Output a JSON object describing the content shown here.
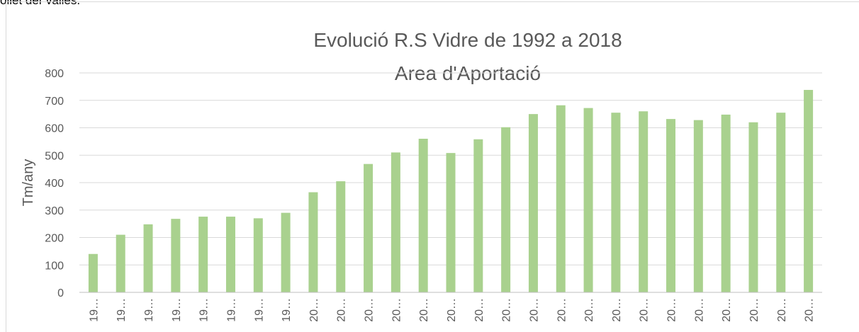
{
  "page_text": "ollet del Vallès.",
  "chart_data": {
    "type": "bar",
    "title": "Evolució R.S Vidre de 1992 a 2018",
    "subtitle": "Area d'Aportació",
    "y_label": "Tm/any",
    "categories": [
      "19…",
      "19…",
      "19…",
      "19…",
      "19…",
      "19…",
      "19…",
      "19…",
      "20…",
      "20…",
      "20…",
      "20…",
      "20…",
      "20…",
      "20…",
      "20…",
      "20…",
      "20…",
      "20…",
      "20…",
      "20…",
      "20…",
      "20…",
      "20…",
      "20…",
      "20…",
      "20…"
    ],
    "values": [
      140,
      210,
      248,
      268,
      276,
      276,
      270,
      290,
      365,
      405,
      468,
      510,
      560,
      508,
      558,
      602,
      650,
      682,
      672,
      655,
      660,
      632,
      628,
      648,
      620,
      655,
      738
    ],
    "color": "#a9d18e",
    "ylim": [
      0,
      800
    ],
    "yticks": [
      0,
      100,
      200,
      300,
      400,
      500,
      600,
      700,
      800
    ],
    "grid": true
  }
}
